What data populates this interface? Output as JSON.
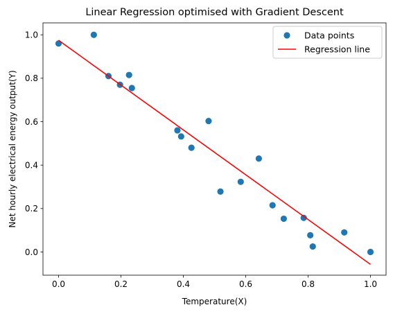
{
  "chart_data": {
    "type": "scatter",
    "title": "Linear Regression optimised with Gradient Descent",
    "xlabel": "Temperature(X)",
    "ylabel": "Net hourly electrical energy output(Y)",
    "xlim": [
      -0.05,
      1.05
    ],
    "ylim": [
      -0.107,
      1.055
    ],
    "xticks": [
      "0.0",
      "0.2",
      "0.4",
      "0.6",
      "0.8",
      "1.0"
    ],
    "xtick_values": [
      0.0,
      0.2,
      0.4,
      0.6,
      0.8,
      1.0
    ],
    "yticks": [
      "0.0",
      "0.2",
      "0.4",
      "0.6",
      "0.8",
      "1.0"
    ],
    "ytick_values": [
      0.0,
      0.2,
      0.4,
      0.6,
      0.8,
      1.0
    ],
    "grid": false,
    "legend_position": "upper right",
    "series": [
      {
        "name": "Data points",
        "kind": "scatter",
        "color": "#1f77b4",
        "points": [
          {
            "x": 0.0,
            "y": 0.96
          },
          {
            "x": 0.113,
            "y": 1.0
          },
          {
            "x": 0.16,
            "y": 0.81
          },
          {
            "x": 0.197,
            "y": 0.77
          },
          {
            "x": 0.226,
            "y": 0.815
          },
          {
            "x": 0.235,
            "y": 0.755
          },
          {
            "x": 0.381,
            "y": 0.56
          },
          {
            "x": 0.393,
            "y": 0.532
          },
          {
            "x": 0.426,
            "y": 0.48
          },
          {
            "x": 0.481,
            "y": 0.603
          },
          {
            "x": 0.519,
            "y": 0.278
          },
          {
            "x": 0.584,
            "y": 0.323
          },
          {
            "x": 0.642,
            "y": 0.43
          },
          {
            "x": 0.686,
            "y": 0.215
          },
          {
            "x": 0.722,
            "y": 0.153
          },
          {
            "x": 0.786,
            "y": 0.157
          },
          {
            "x": 0.807,
            "y": 0.077
          },
          {
            "x": 0.815,
            "y": 0.025
          },
          {
            "x": 0.916,
            "y": 0.09
          },
          {
            "x": 1.0,
            "y": 0.0
          }
        ]
      },
      {
        "name": "Regression line",
        "kind": "line",
        "color": "#ff0000",
        "points": [
          {
            "x": 0.0,
            "y": 0.975
          },
          {
            "x": 1.0,
            "y": -0.057
          }
        ]
      }
    ]
  }
}
